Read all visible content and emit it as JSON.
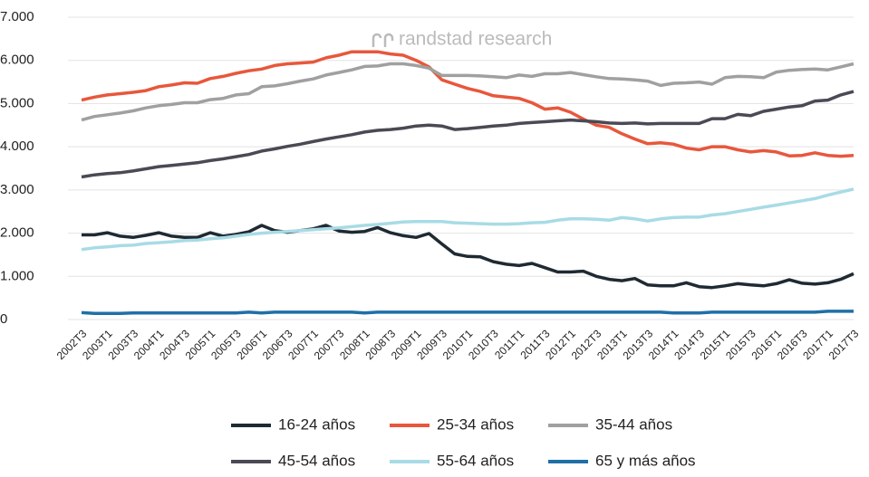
{
  "chart_data": {
    "type": "line",
    "annotation": "randstad research",
    "categories": [
      "2002T3",
      null,
      "2003T1",
      null,
      "2003T3",
      null,
      "2004T1",
      null,
      "2004T3",
      null,
      "2005T1",
      null,
      "2005T3",
      null,
      "2006T1",
      null,
      "2006T3",
      null,
      "2007T1",
      null,
      "2007T3",
      null,
      "2008T1",
      null,
      "2008T3",
      null,
      "2009T1",
      null,
      "2009T3",
      null,
      "2010T1",
      null,
      "2010T3",
      null,
      "2011T1",
      null,
      "2011T3",
      null,
      "2012T1",
      null,
      "2012T3",
      null,
      "2013T1",
      null,
      "2013T3",
      null,
      "2014T1",
      null,
      "2014T3",
      null,
      "2015T1",
      null,
      "2015T3",
      null,
      "2016T1",
      null,
      "2016T3",
      null,
      "2017T1",
      null,
      "2017T3"
    ],
    "series": [
      {
        "name": "16-24 años",
        "color": "#1f2a33",
        "values": [
          1960,
          1960,
          2010,
          1930,
          1900,
          1950,
          2010,
          1930,
          1900,
          1900,
          2010,
          1930,
          1970,
          2030,
          2180,
          2060,
          2020,
          2060,
          2100,
          2180,
          2050,
          2020,
          2040,
          2130,
          2010,
          1940,
          1900,
          1990,
          1750,
          1520,
          1460,
          1450,
          1340,
          1280,
          1250,
          1300,
          1200,
          1100,
          1100,
          1120,
          1000,
          930,
          900,
          950,
          800,
          780,
          780,
          850,
          760,
          740,
          780,
          830,
          800,
          780,
          830,
          920,
          840,
          820,
          850,
          930,
          1060
        ]
      },
      {
        "name": "25-34 años",
        "color": "#e8573c",
        "values": [
          5080,
          5150,
          5200,
          5230,
          5260,
          5300,
          5390,
          5430,
          5480,
          5470,
          5580,
          5630,
          5700,
          5760,
          5800,
          5880,
          5920,
          5940,
          5960,
          6060,
          6120,
          6200,
          6200,
          6200,
          6150,
          6120,
          6000,
          5850,
          5550,
          5450,
          5350,
          5280,
          5180,
          5150,
          5120,
          5020,
          4870,
          4900,
          4800,
          4640,
          4500,
          4450,
          4300,
          4180,
          4070,
          4090,
          4060,
          3970,
          3930,
          4000,
          4000,
          3930,
          3880,
          3910,
          3880,
          3790,
          3800,
          3860,
          3800,
          3780,
          3800
        ]
      },
      {
        "name": "35-44 años",
        "color": "#a0a0a0",
        "values": [
          4620,
          4700,
          4740,
          4780,
          4830,
          4900,
          4950,
          4980,
          5020,
          5020,
          5090,
          5120,
          5200,
          5230,
          5390,
          5410,
          5460,
          5520,
          5570,
          5660,
          5720,
          5780,
          5860,
          5870,
          5920,
          5920,
          5880,
          5820,
          5650,
          5650,
          5650,
          5640,
          5620,
          5600,
          5660,
          5630,
          5690,
          5690,
          5720,
          5670,
          5620,
          5580,
          5570,
          5550,
          5520,
          5420,
          5470,
          5480,
          5500,
          5450,
          5600,
          5630,
          5620,
          5600,
          5730,
          5770,
          5790,
          5800,
          5780,
          5850,
          5920
        ]
      },
      {
        "name": "45-54 años",
        "color": "#4a4a55",
        "values": [
          3300,
          3350,
          3380,
          3400,
          3440,
          3490,
          3540,
          3570,
          3600,
          3630,
          3680,
          3720,
          3770,
          3820,
          3900,
          3950,
          4010,
          4060,
          4120,
          4180,
          4230,
          4280,
          4340,
          4380,
          4400,
          4430,
          4480,
          4500,
          4480,
          4400,
          4420,
          4450,
          4480,
          4500,
          4540,
          4560,
          4580,
          4600,
          4620,
          4600,
          4580,
          4550,
          4540,
          4550,
          4530,
          4540,
          4540,
          4540,
          4540,
          4650,
          4650,
          4750,
          4720,
          4820,
          4870,
          4920,
          4950,
          5060,
          5080,
          5200,
          5280
        ]
      },
      {
        "name": "55-64 años",
        "color": "#a8dbe6",
        "values": [
          1620,
          1660,
          1680,
          1710,
          1720,
          1760,
          1780,
          1800,
          1830,
          1840,
          1870,
          1890,
          1930,
          1970,
          2000,
          2020,
          2040,
          2060,
          2080,
          2100,
          2120,
          2150,
          2180,
          2200,
          2230,
          2260,
          2270,
          2270,
          2270,
          2240,
          2230,
          2220,
          2210,
          2210,
          2220,
          2240,
          2250,
          2300,
          2330,
          2330,
          2320,
          2300,
          2360,
          2330,
          2280,
          2330,
          2360,
          2370,
          2370,
          2420,
          2450,
          2500,
          2550,
          2600,
          2650,
          2700,
          2750,
          2800,
          2880,
          2950,
          3020
        ]
      },
      {
        "name": "65 y más años",
        "color": "#1f6fa8",
        "values": [
          160,
          140,
          140,
          140,
          150,
          150,
          150,
          150,
          150,
          150,
          150,
          150,
          150,
          170,
          150,
          170,
          170,
          170,
          170,
          170,
          170,
          170,
          150,
          170,
          170,
          170,
          170,
          170,
          170,
          170,
          170,
          170,
          170,
          170,
          170,
          170,
          170,
          170,
          170,
          170,
          170,
          170,
          170,
          170,
          170,
          170,
          150,
          150,
          150,
          170,
          170,
          170,
          170,
          170,
          170,
          170,
          170,
          170,
          190,
          190,
          190
        ]
      }
    ],
    "ylim": [
      0,
      7000
    ],
    "yticks": [
      0,
      {
        "value": 1000,
        "label": "1.000"
      },
      {
        "value": 2000,
        "label": "2.000"
      },
      {
        "value": 3000,
        "label": "3.000"
      },
      {
        "value": 4000,
        "label": "4.000"
      },
      {
        "value": 5000,
        "label": "5.000"
      },
      {
        "value": 6000,
        "label": "6.000"
      },
      {
        "value": 7000,
        "label": "7.000"
      }
    ],
    "grid": true
  }
}
